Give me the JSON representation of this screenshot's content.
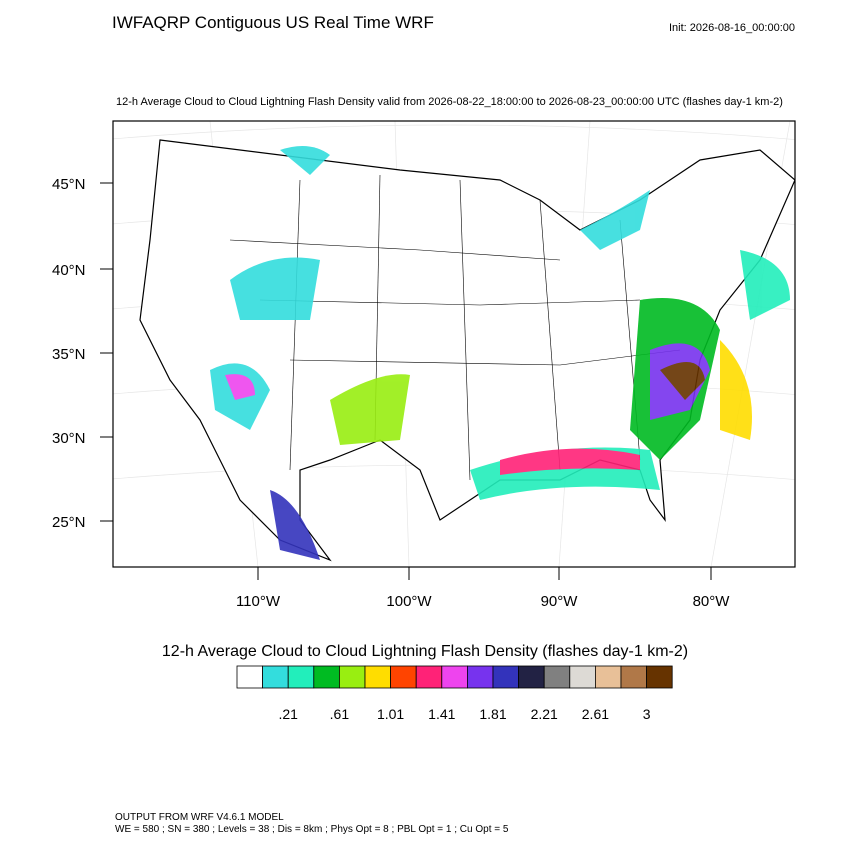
{
  "header": {
    "title": "IWFAQRP Contiguous US Real Time WRF",
    "init": "Init: 2026-08-16_00:00:00"
  },
  "map": {
    "subtitle": "12-h Average Cloud to Cloud Lightning Flash Density valid from 2026-08-22_18:00:00 to 2026-08-23_00:00:00 UTC   (flashes day-1 km-2)",
    "lat_labels": [
      "45°N",
      "40°N",
      "35°N",
      "30°N",
      "25°N"
    ],
    "lon_labels": [
      "110°W",
      "100°W",
      "90°W",
      "80°W"
    ]
  },
  "colorbar": {
    "label": "12-h Average Cloud to Cloud Lightning Flash Density  (flashes day-1 km-2)",
    "colors": [
      "#ffffff",
      "#33dddd",
      "#22eebb",
      "#00bb22",
      "#99ee11",
      "#ffdd00",
      "#ff4400",
      "#ff2277",
      "#ee44ee",
      "#7733ee",
      "#3333bb",
      "#222244",
      "#808080",
      "#dddad5",
      "#e8c098",
      "#b07848",
      "#663300"
    ],
    "labels": [
      ".21",
      ".61",
      "1.01",
      "1.41",
      "1.81",
      "2.21",
      "2.61",
      "3"
    ]
  },
  "footer": {
    "lines": [
      "OUTPUT FROM WRF V4.6.1 MODEL",
      "WE = 580 ; SN = 380 ; Levels = 38 ; Dis = 8km ; Phys Opt = 8 ; PBL Opt = 1 ; Cu Opt = 5"
    ]
  }
}
